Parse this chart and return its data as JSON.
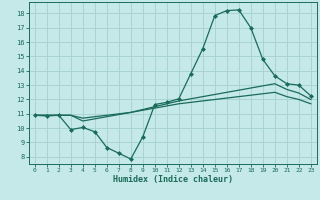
{
  "xlabel": "Humidex (Indice chaleur)",
  "background_color": "#c5e8e8",
  "grid_color": "#aad4d4",
  "line_color": "#1a6b5a",
  "spine_color": "#1a6b5a",
  "tick_color": "#1a6b5a",
  "xlim": [
    -0.5,
    23.5
  ],
  "ylim": [
    7.5,
    18.8
  ],
  "yticks": [
    8,
    9,
    10,
    11,
    12,
    13,
    14,
    15,
    16,
    17,
    18
  ],
  "xticks": [
    0,
    1,
    2,
    3,
    4,
    5,
    6,
    7,
    8,
    9,
    10,
    11,
    12,
    13,
    14,
    15,
    16,
    17,
    18,
    19,
    20,
    21,
    22,
    23
  ],
  "line1_x": [
    0,
    1,
    2,
    3,
    4,
    5,
    6,
    7,
    8,
    9,
    10,
    11,
    12,
    13,
    14,
    15,
    16,
    17,
    18,
    19,
    20,
    21,
    22,
    23
  ],
  "line1_y": [
    10.9,
    10.85,
    10.9,
    9.9,
    10.05,
    9.75,
    8.65,
    8.25,
    7.85,
    9.4,
    11.65,
    11.8,
    12.05,
    13.8,
    15.55,
    17.85,
    18.2,
    18.25,
    17.0,
    14.8,
    13.65,
    13.1,
    13.0,
    12.25
  ],
  "line2_x": [
    0,
    1,
    2,
    3,
    4,
    5,
    6,
    7,
    8,
    9,
    10,
    11,
    12,
    13,
    14,
    15,
    16,
    17,
    18,
    19,
    20,
    21,
    22,
    23
  ],
  "line2_y": [
    10.9,
    10.9,
    10.9,
    10.9,
    10.5,
    10.65,
    10.8,
    10.95,
    11.1,
    11.3,
    11.5,
    11.7,
    11.9,
    12.05,
    12.2,
    12.35,
    12.5,
    12.65,
    12.8,
    12.95,
    13.1,
    12.7,
    12.45,
    12.0
  ],
  "line3_x": [
    0,
    1,
    2,
    3,
    4,
    5,
    6,
    7,
    8,
    9,
    10,
    11,
    12,
    13,
    14,
    15,
    16,
    17,
    18,
    19,
    20,
    21,
    22,
    23
  ],
  "line3_y": [
    10.9,
    10.9,
    10.9,
    10.9,
    10.7,
    10.8,
    10.9,
    11.0,
    11.1,
    11.25,
    11.4,
    11.55,
    11.7,
    11.8,
    11.9,
    12.0,
    12.1,
    12.2,
    12.3,
    12.4,
    12.5,
    12.2,
    12.0,
    11.7
  ]
}
